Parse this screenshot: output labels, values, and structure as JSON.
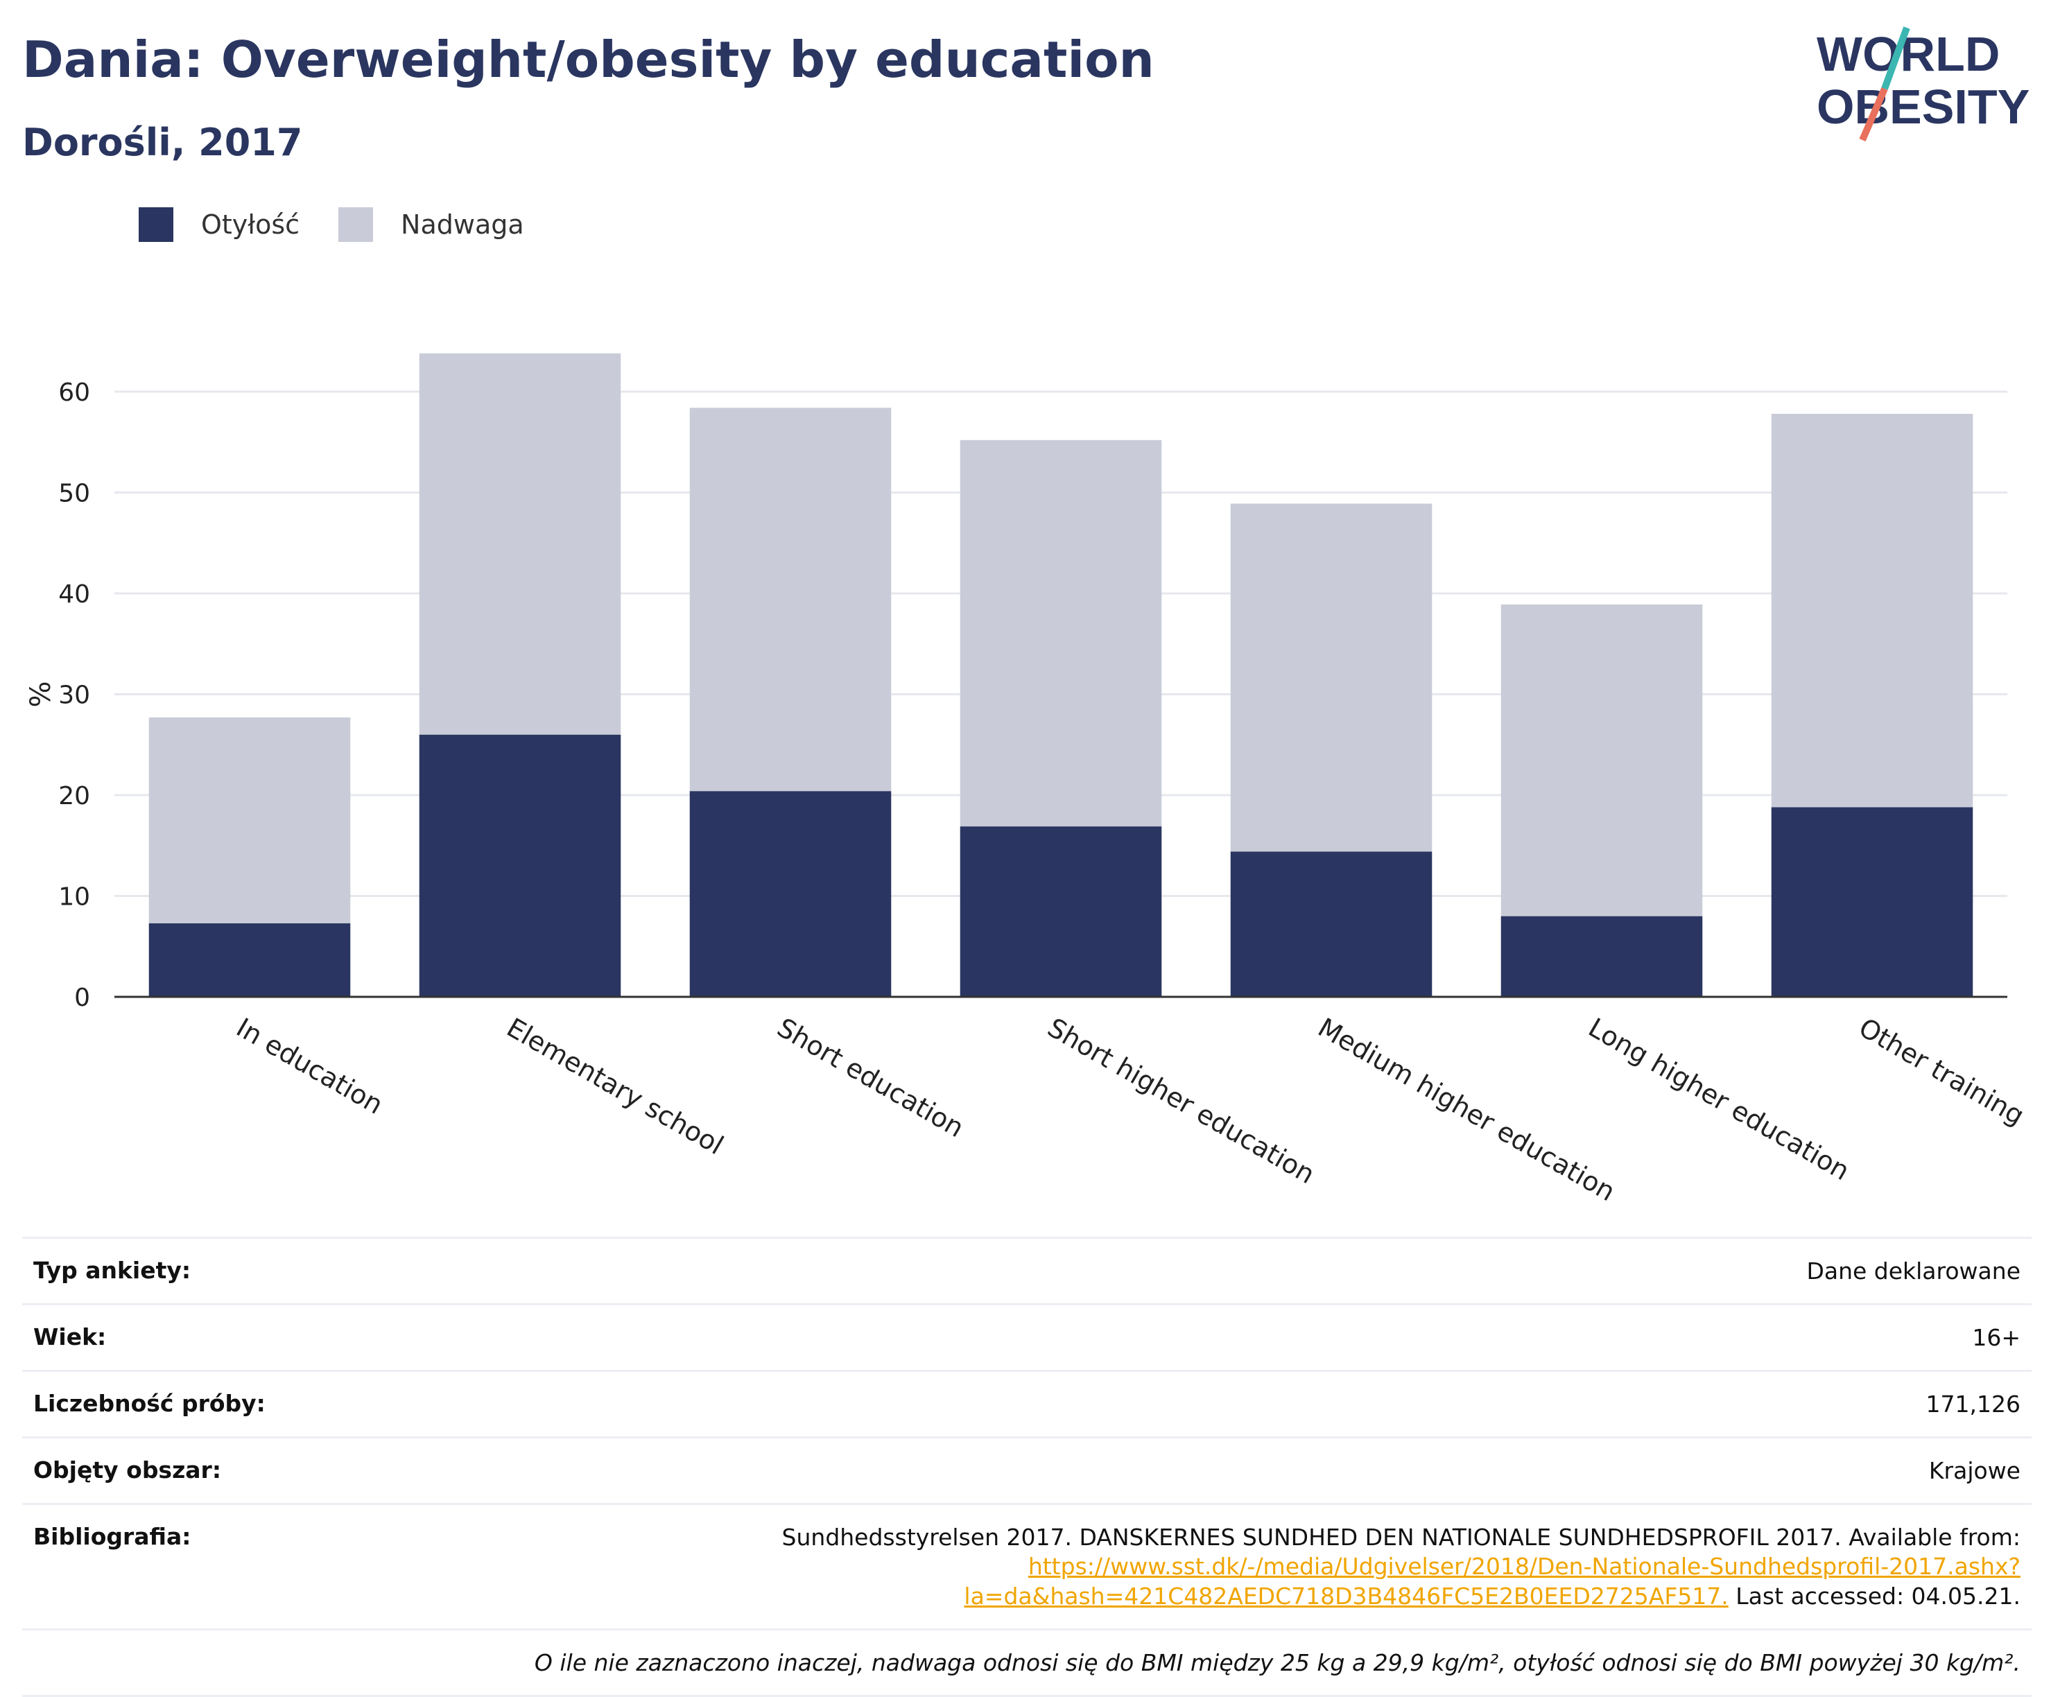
{
  "header": {
    "title": "Dania: Overweight/obesity by education",
    "subtitle": "Dorośli, 2017"
  },
  "logo": {
    "line1": "WORLD",
    "line2": "OBESITY",
    "icon": "world-obesity-logo"
  },
  "colors": {
    "obesity": "#2a3661",
    "overweight": "#c9ccd8",
    "accent_teal": "#3cb6b0",
    "accent_coral": "#e8705c",
    "link": "#f0a500"
  },
  "legend": [
    {
      "label": "Otyłość",
      "color": "#2a3661"
    },
    {
      "label": "Nadwaga",
      "color": "#c9ccd8"
    }
  ],
  "chart_data": {
    "type": "bar",
    "stacked": true,
    "ylabel": "%",
    "xlabel": "",
    "ylim": [
      0,
      65
    ],
    "yticks": [
      0,
      10,
      20,
      30,
      40,
      50,
      60
    ],
    "grid": true,
    "legend_position": "top-left",
    "categories": [
      "In education",
      "Elementary school",
      "Short education",
      "Short higher education",
      "Medium higher education",
      "Long higher education",
      "Other training"
    ],
    "series": [
      {
        "name": "Otyłość",
        "values": [
          7.3,
          26.0,
          20.4,
          16.9,
          14.4,
          8.0,
          18.8
        ]
      },
      {
        "name": "Nadwaga",
        "values": [
          20.4,
          37.8,
          38.0,
          38.3,
          34.5,
          30.9,
          39.0
        ]
      }
    ]
  },
  "meta": {
    "survey_type_label": "Typ ankiety:",
    "survey_type_value": "Dane deklarowane",
    "age_label": "Wiek:",
    "age_value": "16+",
    "sample_label": "Liczebność próby:",
    "sample_value": "171,126",
    "area_label": "Objęty obszar:",
    "area_value": "Krajowe",
    "bib_label": "Bibliografia:",
    "bib_text": "Sundhedsstyrelsen 2017. DANSKERNES SUNDHED DEN NATIONALE SUNDHEDSPROFIL 2017. Available from: ",
    "bib_link": "https://www.sst.dk/-/media/Udgivelser/2018/Den-Nationale-Sundhedsprofil-2017.ashx?la=da&hash=421C482AEDC718D3B4846FC5E2B0EED2725AF517.",
    "bib_accessed": " Last accessed: 04.05.21.",
    "note": "O ile nie zaznaczono inaczej, nadwaga odnosi się do BMI między 25 kg a 29,9 kg/m², otyłość odnosi się do BMI powyżej 30 kg/m²."
  }
}
